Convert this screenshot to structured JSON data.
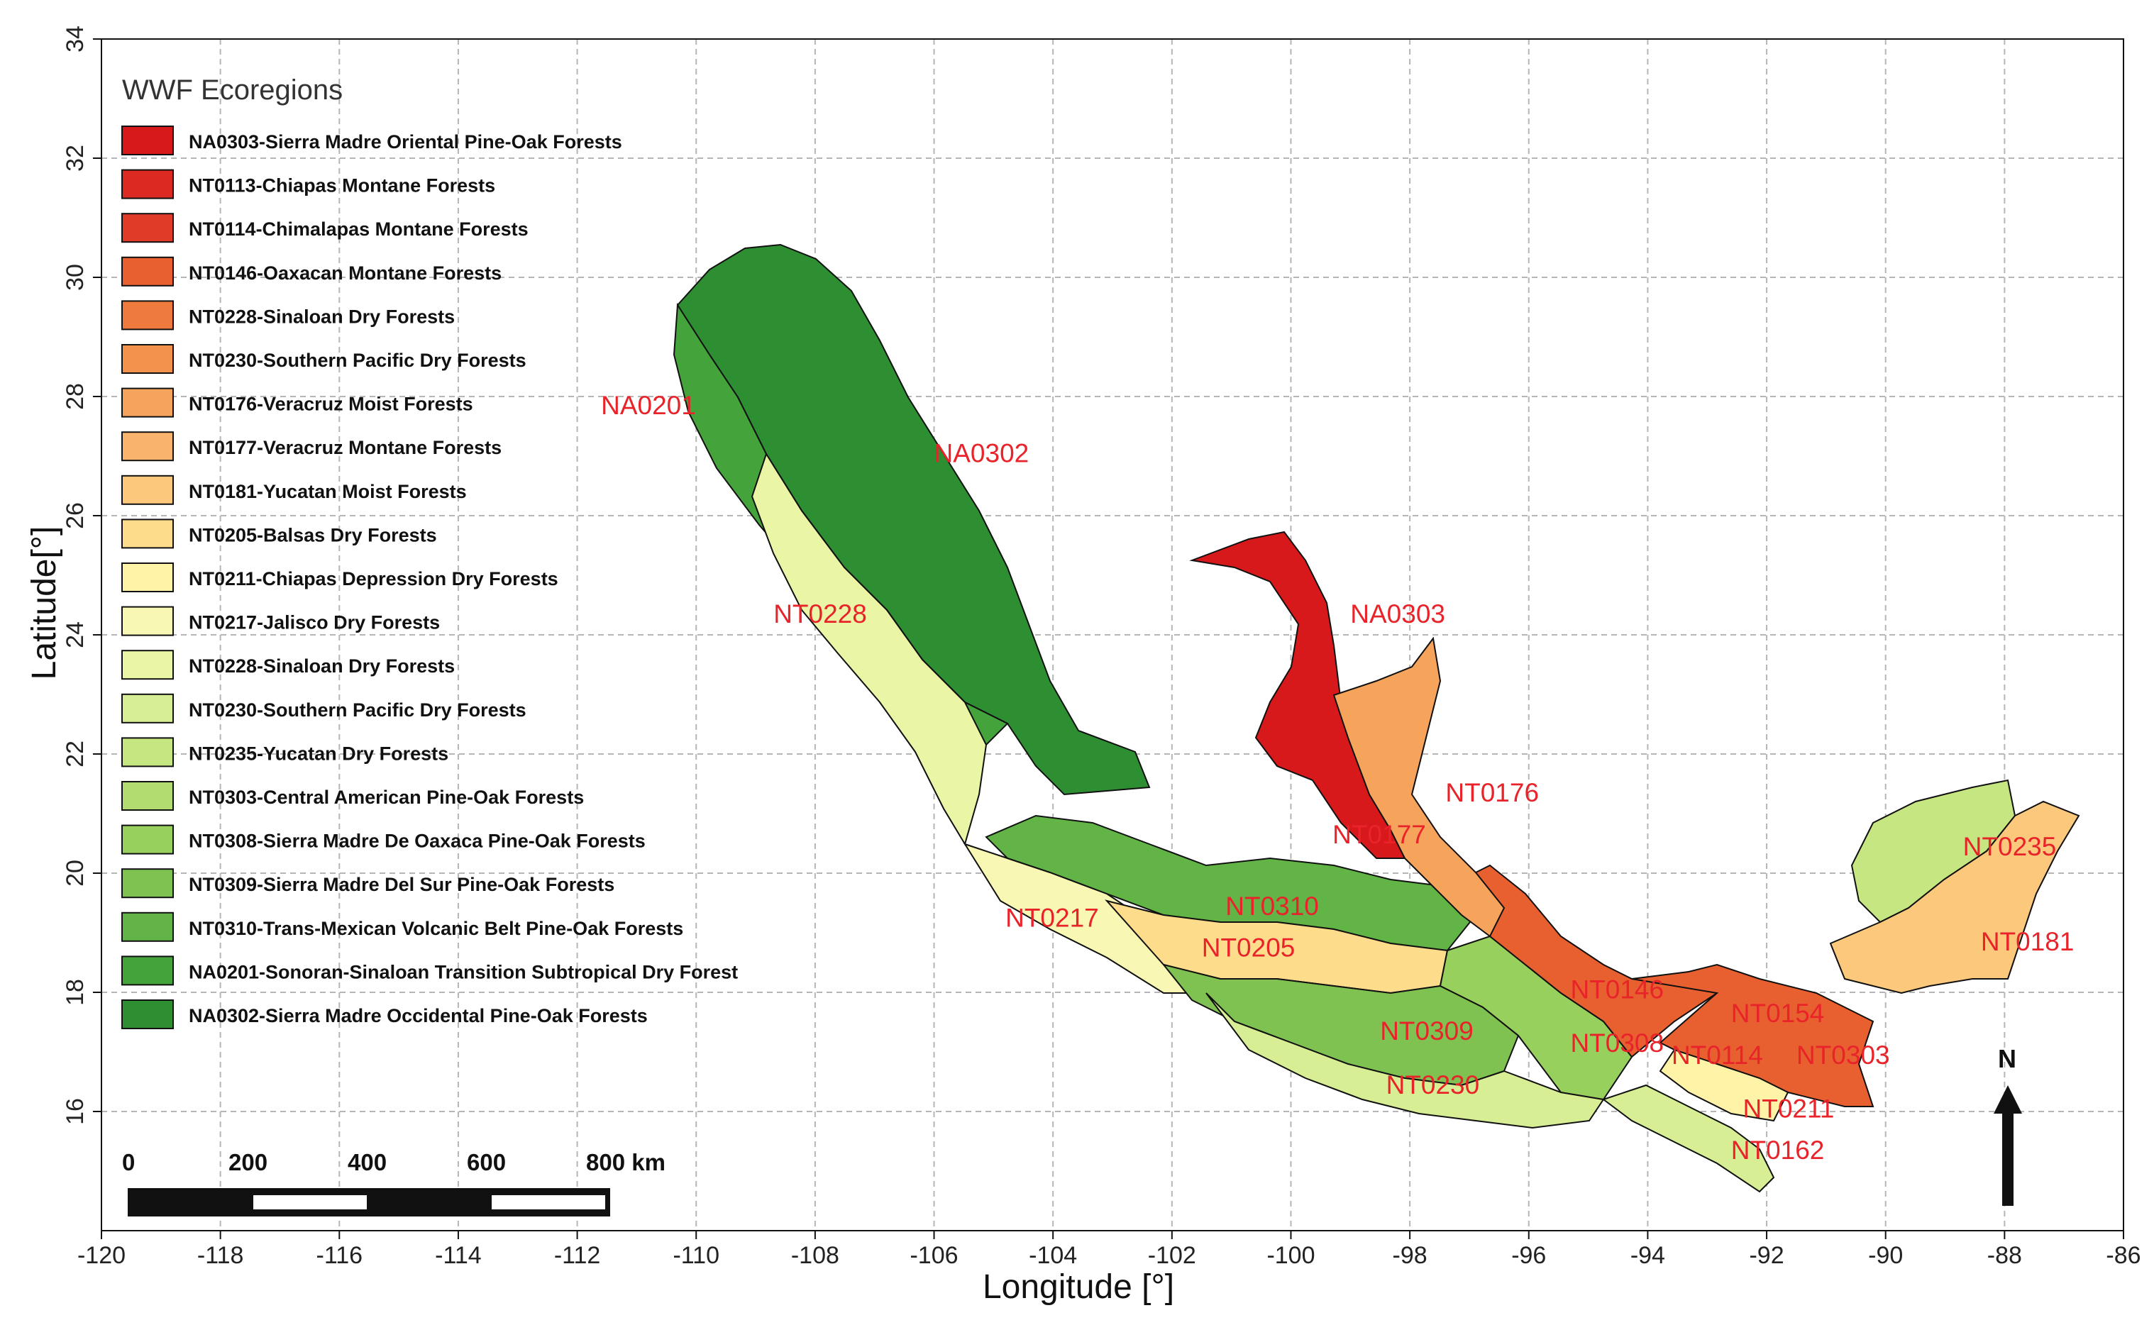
{
  "axes": {
    "x_label": "Longitude [°]",
    "y_label": "Latitude[°]",
    "x_ticks": [
      "-120",
      "-118",
      "-116",
      "-114",
      "-112",
      "-110",
      "-108",
      "-106",
      "-104",
      "-102",
      "-100",
      "-98",
      "-96",
      "-94",
      "-92",
      "-90",
      "-88",
      "-86"
    ],
    "y_ticks": [
      "16",
      "18",
      "20",
      "22",
      "24",
      "26",
      "28",
      "30",
      "32",
      "34"
    ],
    "x_range": [
      -120,
      -86
    ],
    "y_range": [
      14,
      34
    ],
    "grid": true
  },
  "legend": {
    "title": "WWF Ecoregions",
    "placement": "top-left",
    "items": [
      {
        "label": "NA0303-Sierra Madre Oriental Pine-Oak Forests",
        "color": "#d7191c"
      },
      {
        "label": "NT0113-Chiapas Montane Forests",
        "color": "#dc2a22"
      },
      {
        "label": "NT0114-Chimalapas Montane Forests",
        "color": "#e03a28"
      },
      {
        "label": "NT0146-Oaxacan Montane Forests",
        "color": "#e8602f"
      },
      {
        "label": "NT0228-Sinaloan Dry Forests",
        "color": "#ee7a3e"
      },
      {
        "label": "NT0230-Southern Pacific Dry Forests",
        "color": "#f3924c"
      },
      {
        "label": "NT0176-Veracruz Moist Forests",
        "color": "#f6a45c"
      },
      {
        "label": "NT0177-Veracruz Montane Forests",
        "color": "#f8b46c"
      },
      {
        "label": "NT0181-Yucatan Moist Forests",
        "color": "#fbc87c"
      },
      {
        "label": "NT0205-Balsas Dry Forests",
        "color": "#fddc8c"
      },
      {
        "label": "NT0211-Chiapas Depression Dry Forests",
        "color": "#fff3a8"
      },
      {
        "label": "NT0217-Jalisco Dry Forests",
        "color": "#f8f8b4"
      },
      {
        "label": "NT0228-Sinaloan Dry Forests",
        "color": "#eaf5a6"
      },
      {
        "label": "NT0230-Southern Pacific Dry Forests",
        "color": "#d8ee94"
      },
      {
        "label": "NT0235-Yucatan Dry Forests",
        "color": "#c6e682"
      },
      {
        "label": "NT0303-Central American Pine-Oak Forests",
        "color": "#b2dc70"
      },
      {
        "label": "NT0308-Sierra Madre De Oaxaca Pine-Oak Forests",
        "color": "#98d05e"
      },
      {
        "label": "NT0309-Sierra Madre Del Sur Pine-Oak Forests",
        "color": "#7fc252"
      },
      {
        "label": "NT0310-Trans-Mexican Volcanic Belt Pine-Oak Forests",
        "color": "#62b446"
      },
      {
        "label": "NA0201-Sonoran-Sinaloan Transition Subtropical Dry Forest",
        "color": "#45a33c"
      },
      {
        "label": "NA0302-Sierra Madre Occidental Pine-Oak Forests",
        "color": "#2e8f32"
      }
    ]
  },
  "region_labels": [
    {
      "text": "NA0201",
      "lon": -111.6,
      "lat": 27.7
    },
    {
      "text": "NA0302",
      "lon": -106.0,
      "lat": 26.9
    },
    {
      "text": "NT0228",
      "lon": -108.7,
      "lat": 24.2
    },
    {
      "text": "NA0303",
      "lon": -99.0,
      "lat": 24.2
    },
    {
      "text": "NT0176",
      "lon": -97.4,
      "lat": 21.2
    },
    {
      "text": "NT0177",
      "lon": -99.3,
      "lat": 20.5
    },
    {
      "text": "NT0235",
      "lon": -88.7,
      "lat": 20.3
    },
    {
      "text": "NT0310",
      "lon": -101.1,
      "lat": 19.3
    },
    {
      "text": "NT0217",
      "lon": -104.8,
      "lat": 19.1
    },
    {
      "text": "NT0205",
      "lon": -101.5,
      "lat": 18.6
    },
    {
      "text": "NT0181",
      "lon": -88.4,
      "lat": 18.7
    },
    {
      "text": "NT0146",
      "lon": -95.3,
      "lat": 17.9
    },
    {
      "text": "NT0154",
      "lon": -92.6,
      "lat": 17.5
    },
    {
      "text": "NT0309",
      "lon": -98.5,
      "lat": 17.2
    },
    {
      "text": "NT0308",
      "lon": -95.3,
      "lat": 17.0
    },
    {
      "text": "NT0114",
      "lon": -93.6,
      "lat": 16.8
    },
    {
      "text": "NT0303",
      "lon": -91.5,
      "lat": 16.8
    },
    {
      "text": "NT0230",
      "lon": -98.4,
      "lat": 16.3
    },
    {
      "text": "NT0211",
      "lon": -92.4,
      "lat": 15.9
    },
    {
      "text": "NT0162",
      "lon": -92.6,
      "lat": 15.2
    }
  ],
  "scale_bar": {
    "labels": [
      "0",
      "200",
      "400",
      "600",
      "800 km"
    ]
  },
  "north_arrow": {
    "label": "N"
  },
  "colors": {
    "label_red": "#e8232a",
    "grid": "#b5b5b5"
  }
}
